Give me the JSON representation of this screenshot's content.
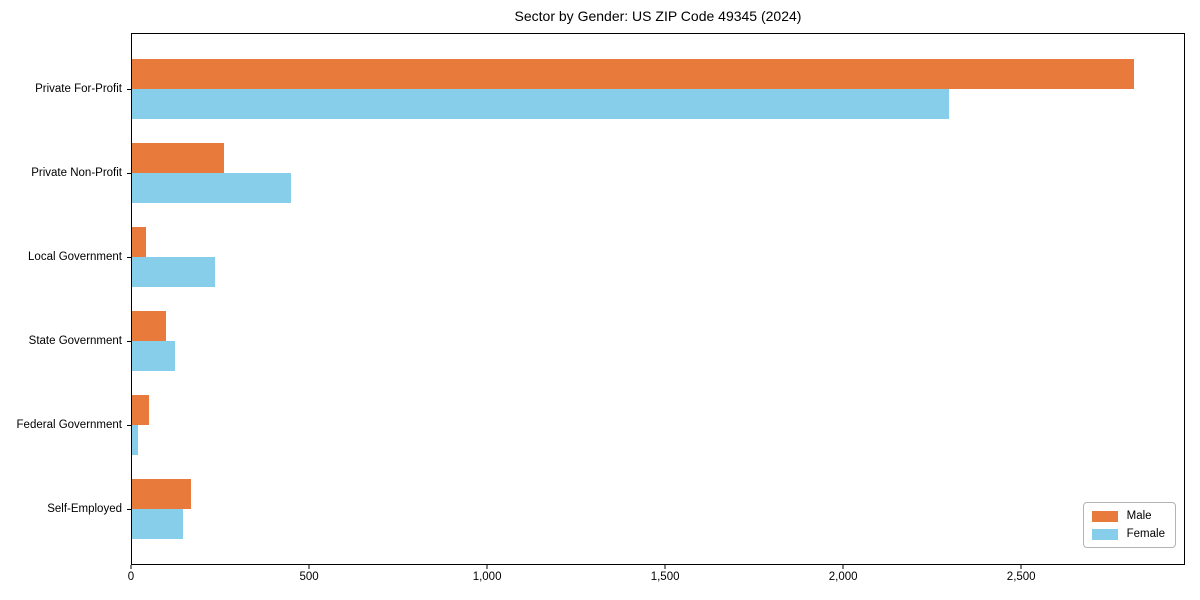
{
  "figure": {
    "background": "#ffffff",
    "text_color": "#000000",
    "axis_color": "#000000"
  },
  "chart_data": {
    "type": "bar",
    "orientation": "horizontal",
    "title": "Sector by Gender: US ZIP Code 49345 (2024)",
    "categories": [
      "Private For-Profit",
      "Private Non-Profit",
      "Local Government",
      "State Government",
      "Federal Government",
      "Self-Employed"
    ],
    "series": [
      {
        "name": "Male",
        "color": "#e87b3c",
        "values": [
          2820,
          260,
          40,
          97,
          49,
          165
        ]
      },
      {
        "name": "Female",
        "color": "#87ceeb",
        "values": [
          2300,
          447,
          233,
          120,
          18,
          144
        ]
      }
    ],
    "xlabel": "",
    "ylabel": "",
    "xlim": [
      0,
      2960
    ],
    "xticks": [
      0,
      500,
      1000,
      1500,
      2000,
      2500
    ],
    "xtick_labels": [
      "0",
      "500",
      "1,000",
      "1,500",
      "2,000",
      "2,500"
    ],
    "grid": false,
    "legend_position": "lower right",
    "legend_border_color": "#b3b3b3"
  }
}
